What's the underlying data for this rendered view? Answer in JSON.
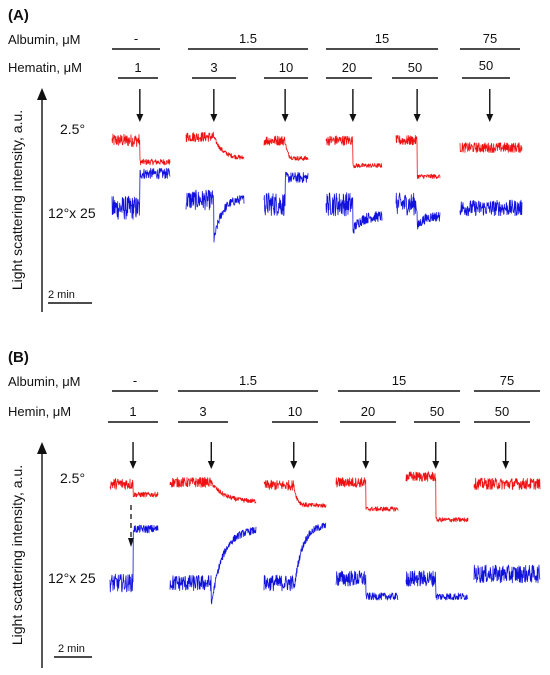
{
  "chart_data": [
    {
      "type": "line",
      "panel": "(A)",
      "row_labels": {
        "albumin": "Albumin, μM",
        "heme": "Hematin, μM"
      },
      "albumin_groups": [
        {
          "label": "-",
          "conditions": [
            0
          ]
        },
        {
          "label": "1.5",
          "conditions": [
            1,
            2
          ]
        },
        {
          "label": "15",
          "conditions": [
            3,
            4
          ]
        },
        {
          "label": "75",
          "conditions": [
            5
          ]
        }
      ],
      "heme_values": [
        "1",
        "3",
        "10",
        "20",
        "50",
        "50"
      ],
      "angle_labels": [
        "2.5°",
        "12°x 25"
      ],
      "ylabel": "Light scattering intensity, a.u.",
      "scale_label": "2 min",
      "colors": {
        "angle_2_5": "#ee1111",
        "angle_12": "#1111dd"
      },
      "conditions": [
        {
          "heme": "1",
          "red": {
            "before": 0.55,
            "after": 0.25,
            "decay": "step",
            "noise": 0.18
          },
          "blue": {
            "before": 0.5,
            "after": 0.93,
            "decay": "step",
            "noise": 0.3
          }
        },
        {
          "heme": "3",
          "red": {
            "before": 0.6,
            "after": 0.3,
            "decay": "slow",
            "noise": 0.14
          },
          "blue": {
            "before": 0.6,
            "dip": 0.08,
            "after": 0.62,
            "decay": "recover",
            "noise": 0.25
          }
        },
        {
          "heme": "10",
          "red": {
            "before": 0.55,
            "after": 0.3,
            "decay": "fast",
            "noise": 0.14
          },
          "blue": {
            "before": 0.55,
            "after": 0.88,
            "decay": "step",
            "noise": 0.3
          }
        },
        {
          "heme": "20",
          "red": {
            "before": 0.55,
            "after": 0.2,
            "decay": "step",
            "noise": 0.14
          },
          "blue": {
            "before": 0.55,
            "dip": 0.22,
            "after": 0.4,
            "decay": "recover",
            "noise": 0.3
          }
        },
        {
          "heme": "50",
          "red": {
            "before": 0.55,
            "after": 0.05,
            "decay": "step",
            "noise": 0.14
          },
          "blue": {
            "before": 0.55,
            "dip": 0.25,
            "after": 0.4,
            "decay": "recover",
            "noise": 0.28
          }
        },
        {
          "heme": "50",
          "red": {
            "before": 0.45,
            "after": 0.45,
            "decay": "none",
            "noise": 0.14
          },
          "blue": {
            "before": 0.5,
            "after": 0.5,
            "decay": "none",
            "noise": 0.2
          }
        }
      ]
    },
    {
      "type": "line",
      "panel": "(B)",
      "row_labels": {
        "albumin": "Albumin, μM",
        "heme": "Hemin, μM"
      },
      "albumin_groups": [
        {
          "label": "-",
          "conditions": [
            0
          ]
        },
        {
          "label": "1.5",
          "conditions": [
            1,
            2
          ]
        },
        {
          "label": "15",
          "conditions": [
            3,
            4
          ]
        },
        {
          "label": "75",
          "conditions": [
            5
          ]
        }
      ],
      "heme_values": [
        "1",
        "3",
        "10",
        "20",
        "50",
        "50"
      ],
      "angle_labels": [
        "2.5°",
        "12°x 25"
      ],
      "ylabel": "Light scattering intensity, a.u.",
      "scale_label": "2 min",
      "colors": {
        "angle_2_5": "#ee1111",
        "angle_12": "#1111dd"
      },
      "conditions": [
        {
          "heme": "1",
          "red": {
            "before": 0.6,
            "after": 0.45,
            "decay": "step",
            "noise": 0.16
          },
          "blue": {
            "before": 0.3,
            "after": 0.9,
            "decay": "step",
            "noise": 0.2
          }
        },
        {
          "heme": "3",
          "red": {
            "before": 0.62,
            "after": 0.35,
            "decay": "slow",
            "noise": 0.14
          },
          "blue": {
            "before": 0.3,
            "dip": 0.05,
            "after": 0.9,
            "decay": "recover",
            "noise": 0.18
          }
        },
        {
          "heme": "10",
          "red": {
            "before": 0.58,
            "after": 0.3,
            "decay": "fast",
            "noise": 0.14
          },
          "blue": {
            "before": 0.3,
            "dip": 0.2,
            "after": 0.95,
            "decay": "recover",
            "noise": 0.18
          }
        },
        {
          "heme": "20",
          "red": {
            "before": 0.62,
            "after": 0.25,
            "decay": "step",
            "noise": 0.14
          },
          "blue": {
            "before": 0.35,
            "after": 0.15,
            "decay": "step",
            "noise": 0.18
          }
        },
        {
          "heme": "50",
          "red": {
            "before": 0.7,
            "after": 0.1,
            "decay": "step",
            "noise": 0.14
          },
          "blue": {
            "before": 0.35,
            "after": 0.15,
            "decay": "step",
            "noise": 0.18
          }
        },
        {
          "heme": "50",
          "red": {
            "before": 0.6,
            "after": 0.6,
            "decay": "none",
            "noise": 0.16
          },
          "blue": {
            "before": 0.4,
            "after": 0.4,
            "decay": "none",
            "noise": 0.2
          }
        }
      ]
    }
  ]
}
